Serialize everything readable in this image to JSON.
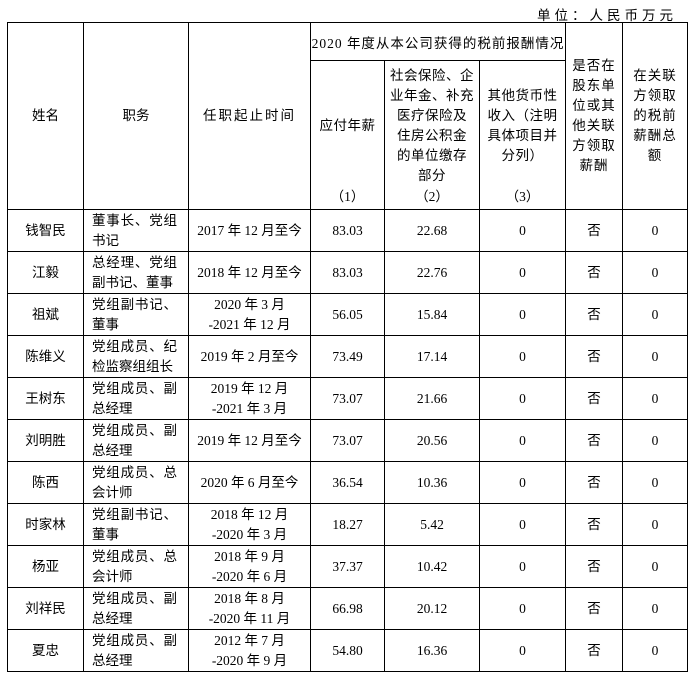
{
  "unit_label": "单位：人民币万元",
  "table": {
    "headers": {
      "name": "姓名",
      "position": "职务",
      "term": "任职起止时间",
      "group": "2020 年度从本公司获得的税前报酬情况",
      "salary": "应付年薪",
      "salary_num": "（1）",
      "insurance": "社会保险、企\n业年金、补充\n医疗保险及\n住房公积金\n的单位缴存\n部分",
      "insurance_num": "（2）",
      "other_income": "其他货币性\n收入（注明\n具体项目并\n分列）",
      "other_income_num": "（3）",
      "related_party_paid": "是否在\n股东单\n位或其\n他关联\n方领取\n薪酬",
      "related_party_total": "在关联\n方领取\n的税前\n薪酬总\n额"
    },
    "rows": [
      {
        "name": "钱智民",
        "position": "董事长、党组书记",
        "term": "2017 年 12 月至今",
        "salary": "83.03",
        "insurance": "22.68",
        "other": "0",
        "related": "否",
        "related_total": "0"
      },
      {
        "name": "江毅",
        "position": "总经理、党组副书记、董事",
        "term": "2018 年 12 月至今",
        "salary": "83.03",
        "insurance": "22.76",
        "other": "0",
        "related": "否",
        "related_total": "0"
      },
      {
        "name": "祖斌",
        "position": "党组副书记、董事",
        "term": "2020 年 3 月\n-2021 年 12 月",
        "salary": "56.05",
        "insurance": "15.84",
        "other": "0",
        "related": "否",
        "related_total": "0"
      },
      {
        "name": "陈维义",
        "position": "党组成员、纪检监察组组长",
        "term": "2019 年 2 月至今",
        "salary": "73.49",
        "insurance": "17.14",
        "other": "0",
        "related": "否",
        "related_total": "0"
      },
      {
        "name": "王树东",
        "position": "党组成员、副总经理",
        "term": "2019 年 12 月\n-2021 年 3 月",
        "salary": "73.07",
        "insurance": "21.66",
        "other": "0",
        "related": "否",
        "related_total": "0"
      },
      {
        "name": "刘明胜",
        "position": "党组成员、副总经理",
        "term": "2019 年 12 月至今",
        "salary": "73.07",
        "insurance": "20.56",
        "other": "0",
        "related": "否",
        "related_total": "0"
      },
      {
        "name": "陈西",
        "position": "党组成员、总会计师",
        "term": "2020 年 6 月至今",
        "salary": "36.54",
        "insurance": "10.36",
        "other": "0",
        "related": "否",
        "related_total": "0"
      },
      {
        "name": "时家林",
        "position": "党组副书记、董事",
        "term": "2018 年 12 月\n-2020 年 3 月",
        "salary": "18.27",
        "insurance": "5.42",
        "other": "0",
        "related": "否",
        "related_total": "0"
      },
      {
        "name": "杨亚",
        "position": "党组成员、总会计师",
        "term": "2018 年 9 月\n-2020 年 6 月",
        "salary": "37.37",
        "insurance": "10.42",
        "other": "0",
        "related": "否",
        "related_total": "0"
      },
      {
        "name": "刘祥民",
        "position": "党组成员、副总经理",
        "term": "2018 年 8 月\n-2020 年 11 月",
        "salary": "66.98",
        "insurance": "20.12",
        "other": "0",
        "related": "否",
        "related_total": "0"
      },
      {
        "name": "夏忠",
        "position": "党组成员、副总经理",
        "term": "2012 年 7 月\n-2020 年 9 月",
        "salary": "54.80",
        "insurance": "16.36",
        "other": "0",
        "related": "否",
        "related_total": "0"
      }
    ]
  }
}
